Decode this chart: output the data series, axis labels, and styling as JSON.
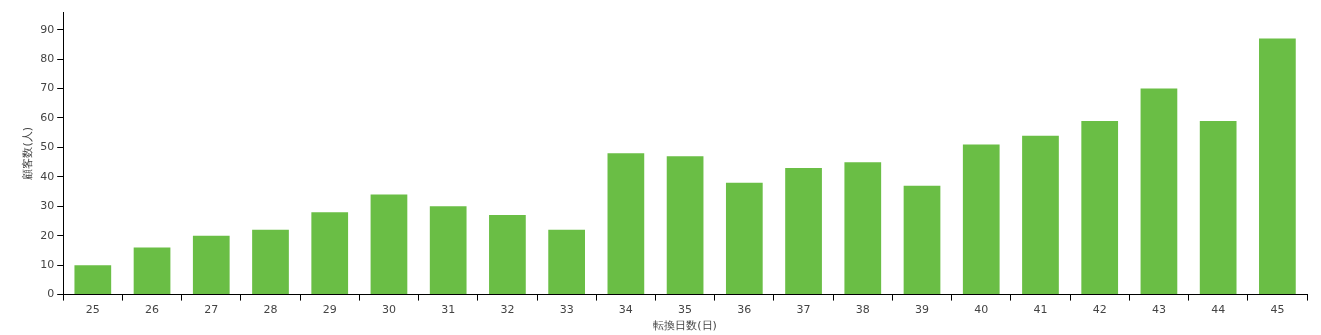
{
  "chart_data": {
    "type": "bar",
    "xlabel": "転換日数(日)",
    "ylabel": "顧客数(人)",
    "categories": [
      "25",
      "26",
      "27",
      "28",
      "29",
      "30",
      "31",
      "32",
      "33",
      "34",
      "35",
      "36",
      "37",
      "38",
      "39",
      "40",
      "41",
      "42",
      "43",
      "44",
      "45"
    ],
    "values": [
      10,
      16,
      20,
      22,
      28,
      34,
      30,
      27,
      22,
      48,
      47,
      38,
      43,
      45,
      37,
      51,
      54,
      59,
      70,
      59,
      87
    ],
    "color": "#6abe45",
    "ylim": [
      0,
      96
    ],
    "yticks": [
      0,
      10,
      20,
      30,
      40,
      50,
      60,
      70,
      80,
      90
    ],
    "grid": false,
    "legend": false
  }
}
